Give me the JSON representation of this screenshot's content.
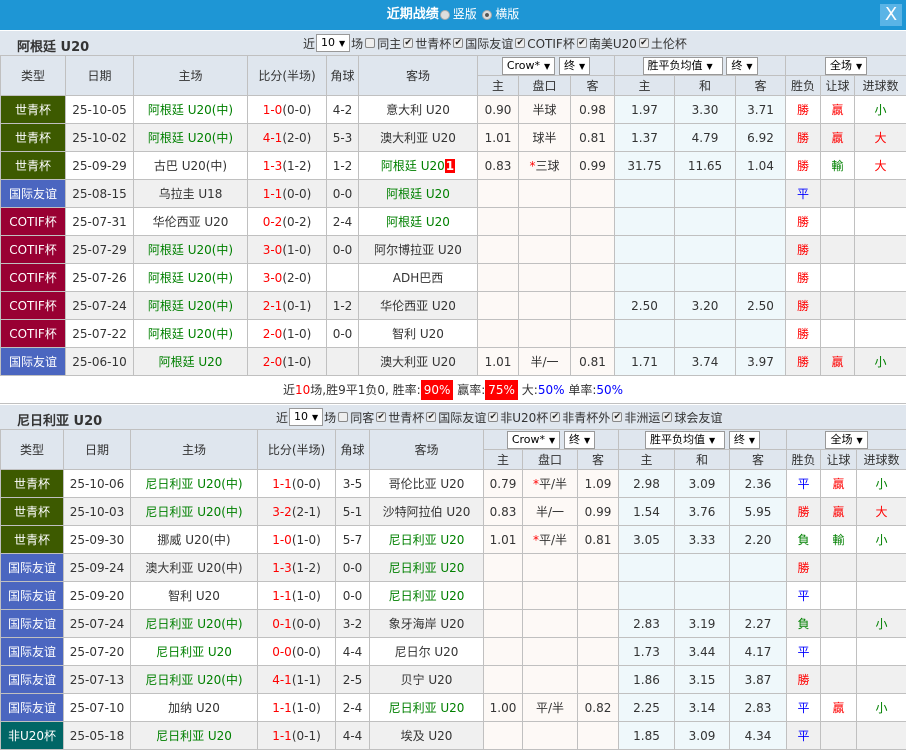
{
  "window": {
    "title": "近期战绩",
    "layout_options": [
      "竖版",
      "横版"
    ],
    "selected_layout": "横版",
    "close_label": "X"
  },
  "colors": {
    "title_bar": "#1e96d5",
    "header_bg": "#dfe6ee",
    "世青杯": "#3d5a00",
    "国际友谊": "#4b66c0",
    "COTIF杯": "#990033",
    "非U20杯": "#006666"
  },
  "headers": {
    "type": "类型",
    "date": "日期",
    "home": "主场",
    "score": "比分(半场)",
    "corner": "角球",
    "away": "客场",
    "company": "Crow*",
    "odds_state": "终",
    "avg": "胜平负均值",
    "avg_state": "终",
    "scope": "全场",
    "sub": [
      "主",
      "盘口",
      "客",
      "主",
      "和",
      "客",
      "胜负",
      "让球",
      "进球数"
    ]
  },
  "sections": [
    {
      "team": "阿根廷 U20",
      "recent_label": "近",
      "count": "10",
      "unit_label": "场",
      "same_label": "同主",
      "filters": [
        "世青杯",
        "国际友谊",
        "COTIF杯",
        "南美U20",
        "土伦杯"
      ],
      "rows": [
        {
          "type": "世青杯",
          "date": "25-10-05",
          "home": "阿根廷 U20(中)",
          "home_hl": true,
          "score": "1-0",
          "ht": "(0-0)",
          "corner": "4-2",
          "away": "意大利 U20",
          "away_hl": false,
          "o_h": "0.90",
          "star": "",
          "hc": "半球",
          "o_a": "0.98",
          "a_h": "1.97",
          "a_d": "3.30",
          "a_a": "3.71",
          "wl": "勝",
          "ah": "贏",
          "ou": "小"
        },
        {
          "type": "世青杯",
          "date": "25-10-02",
          "home": "阿根廷 U20(中)",
          "home_hl": true,
          "score": "4-1",
          "ht": "(2-0)",
          "corner": "5-3",
          "away": "澳大利亚 U20",
          "away_hl": false,
          "o_h": "1.01",
          "star": "",
          "hc": "球半",
          "o_a": "0.81",
          "a_h": "1.37",
          "a_d": "4.79",
          "a_a": "6.92",
          "wl": "勝",
          "ah": "贏",
          "ou": "大"
        },
        {
          "type": "世青杯",
          "date": "25-09-29",
          "home": "古巴 U20(中)",
          "home_hl": false,
          "score": "1-3",
          "ht": "(1-2)",
          "corner": "1-2",
          "away": "阿根廷 U20",
          "away_hl": true,
          "away_badge": "1",
          "o_h": "0.83",
          "star": "*",
          "hc": "三球",
          "o_a": "0.99",
          "a_h": "31.75",
          "a_d": "11.65",
          "a_a": "1.04",
          "wl": "勝",
          "ah": "輸",
          "ou": "大"
        },
        {
          "type": "国际友谊",
          "date": "25-08-15",
          "home": "乌拉圭 U18",
          "home_hl": false,
          "score": "1-1",
          "ht": "(0-0)",
          "corner": "0-0",
          "away": "阿根廷 U20",
          "away_hl": true,
          "o_h": "",
          "star": "",
          "hc": "",
          "o_a": "",
          "a_h": "",
          "a_d": "",
          "a_a": "",
          "wl": "平",
          "ah": "",
          "ou": ""
        },
        {
          "type": "COTIF杯",
          "date": "25-07-31",
          "home": "华伦西亚 U20",
          "home_hl": false,
          "score": "0-2",
          "ht": "(0-2)",
          "corner": "2-4",
          "away": "阿根廷 U20",
          "away_hl": true,
          "o_h": "",
          "star": "",
          "hc": "",
          "o_a": "",
          "a_h": "",
          "a_d": "",
          "a_a": "",
          "wl": "勝",
          "ah": "",
          "ou": ""
        },
        {
          "type": "COTIF杯",
          "date": "25-07-29",
          "home": "阿根廷 U20(中)",
          "home_hl": true,
          "score": "3-0",
          "ht": "(1-0)",
          "corner": "0-0",
          "away": "阿尔博拉亚 U20",
          "away_hl": false,
          "o_h": "",
          "star": "",
          "hc": "",
          "o_a": "",
          "a_h": "",
          "a_d": "",
          "a_a": "",
          "wl": "勝",
          "ah": "",
          "ou": ""
        },
        {
          "type": "COTIF杯",
          "date": "25-07-26",
          "home": "阿根廷 U20(中)",
          "home_hl": true,
          "score": "3-0",
          "ht": "(2-0)",
          "corner": "",
          "away": "ADH巴西",
          "away_hl": false,
          "o_h": "",
          "star": "",
          "hc": "",
          "o_a": "",
          "a_h": "",
          "a_d": "",
          "a_a": "",
          "wl": "勝",
          "ah": "",
          "ou": ""
        },
        {
          "type": "COTIF杯",
          "date": "25-07-24",
          "home": "阿根廷 U20(中)",
          "home_hl": true,
          "score": "2-1",
          "ht": "(0-1)",
          "corner": "1-2",
          "away": "华伦西亚 U20",
          "away_hl": false,
          "o_h": "",
          "star": "",
          "hc": "",
          "o_a": "",
          "a_h": "2.50",
          "a_d": "3.20",
          "a_a": "2.50",
          "wl": "勝",
          "ah": "",
          "ou": ""
        },
        {
          "type": "COTIF杯",
          "date": "25-07-22",
          "home": "阿根廷 U20(中)",
          "home_hl": true,
          "score": "2-0",
          "ht": "(1-0)",
          "corner": "0-0",
          "away": "智利 U20",
          "away_hl": false,
          "o_h": "",
          "star": "",
          "hc": "",
          "o_a": "",
          "a_h": "",
          "a_d": "",
          "a_a": "",
          "wl": "勝",
          "ah": "",
          "ou": ""
        },
        {
          "type": "国际友谊",
          "date": "25-06-10",
          "home": "阿根廷 U20",
          "home_hl": true,
          "score": "2-0",
          "ht": "(1-0)",
          "corner": "",
          "away": "澳大利亚 U20",
          "away_hl": false,
          "o_h": "1.01",
          "star": "",
          "hc": "半/一",
          "o_a": "0.81",
          "a_h": "1.71",
          "a_d": "3.74",
          "a_a": "3.97",
          "wl": "勝",
          "ah": "贏",
          "ou": "小"
        }
      ],
      "summary": {
        "p1": "近",
        "n": "10",
        "p2": "场,胜",
        "w": "9",
        "p3": "平",
        "d": "1",
        "p4": "负",
        "l": "0",
        "p5": ", 胜率:",
        "win_rate": "90%",
        "p6": "赢率:",
        "ah_rate": "75%",
        "p7": "大:",
        "big_rate": "50%",
        "p8": "单率:",
        "odd_rate": "50%"
      }
    },
    {
      "team": "尼日利亚 U20",
      "recent_label": "近",
      "count": "10",
      "unit_label": "场",
      "same_label": "同客",
      "filters": [
        "世青杯",
        "国际友谊",
        "非U20杯",
        "非青杯外",
        "非洲运",
        "球会友谊"
      ],
      "rows": [
        {
          "type": "世青杯",
          "date": "25-10-06",
          "home": "尼日利亚 U20(中)",
          "home_hl": true,
          "score": "1-1",
          "ht": "(0-0)",
          "corner": "3-5",
          "away": "哥伦比亚 U20",
          "away_hl": false,
          "o_h": "0.79",
          "star": "*",
          "hc": "平/半",
          "o_a": "1.09",
          "a_h": "2.98",
          "a_d": "3.09",
          "a_a": "2.36",
          "wl": "平",
          "ah": "贏",
          "ou": "小"
        },
        {
          "type": "世青杯",
          "date": "25-10-03",
          "home": "尼日利亚 U20(中)",
          "home_hl": true,
          "score": "3-2",
          "ht": "(2-1)",
          "corner": "5-1",
          "away": "沙特阿拉伯 U20",
          "away_hl": false,
          "o_h": "0.83",
          "star": "",
          "hc": "半/一",
          "o_a": "0.99",
          "a_h": "1.54",
          "a_d": "3.76",
          "a_a": "5.95",
          "wl": "勝",
          "ah": "贏",
          "ou": "大"
        },
        {
          "type": "世青杯",
          "date": "25-09-30",
          "home": "挪威 U20(中)",
          "home_hl": false,
          "score": "1-0",
          "ht": "(1-0)",
          "corner": "5-7",
          "away": "尼日利亚 U20",
          "away_hl": true,
          "o_h": "1.01",
          "star": "*",
          "hc": "平/半",
          "o_a": "0.81",
          "a_h": "3.05",
          "a_d": "3.33",
          "a_a": "2.20",
          "wl": "負",
          "ah": "輸",
          "ou": "小"
        },
        {
          "type": "国际友谊",
          "date": "25-09-24",
          "home": "澳大利亚 U20(中)",
          "home_hl": false,
          "score": "1-3",
          "ht": "(1-2)",
          "corner": "0-0",
          "away": "尼日利亚 U20",
          "away_hl": true,
          "o_h": "",
          "star": "",
          "hc": "",
          "o_a": "",
          "a_h": "",
          "a_d": "",
          "a_a": "",
          "wl": "勝",
          "ah": "",
          "ou": ""
        },
        {
          "type": "国际友谊",
          "date": "25-09-20",
          "home": "智利 U20",
          "home_hl": false,
          "score": "1-1",
          "ht": "(1-0)",
          "corner": "0-0",
          "away": "尼日利亚 U20",
          "away_hl": true,
          "o_h": "",
          "star": "",
          "hc": "",
          "o_a": "",
          "a_h": "",
          "a_d": "",
          "a_a": "",
          "wl": "平",
          "ah": "",
          "ou": ""
        },
        {
          "type": "国际友谊",
          "date": "25-07-24",
          "home": "尼日利亚 U20(中)",
          "home_hl": true,
          "score": "0-1",
          "ht": "(0-0)",
          "corner": "3-2",
          "away": "象牙海岸 U20",
          "away_hl": false,
          "o_h": "",
          "star": "",
          "hc": "",
          "o_a": "",
          "a_h": "2.83",
          "a_d": "3.19",
          "a_a": "2.27",
          "wl": "負",
          "ah": "",
          "ou": "小"
        },
        {
          "type": "国际友谊",
          "date": "25-07-20",
          "home": "尼日利亚 U20",
          "home_hl": true,
          "score": "0-0",
          "ht": "(0-0)",
          "corner": "4-4",
          "away": "尼日尔 U20",
          "away_hl": false,
          "o_h": "",
          "star": "",
          "hc": "",
          "o_a": "",
          "a_h": "1.73",
          "a_d": "3.44",
          "a_a": "4.17",
          "wl": "平",
          "ah": "",
          "ou": ""
        },
        {
          "type": "国际友谊",
          "date": "25-07-13",
          "home": "尼日利亚 U20(中)",
          "home_hl": true,
          "score": "4-1",
          "ht": "(1-1)",
          "corner": "2-5",
          "away": "贝宁 U20",
          "away_hl": false,
          "o_h": "",
          "star": "",
          "hc": "",
          "o_a": "",
          "a_h": "1.86",
          "a_d": "3.15",
          "a_a": "3.87",
          "wl": "勝",
          "ah": "",
          "ou": ""
        },
        {
          "type": "国际友谊",
          "date": "25-07-10",
          "home": "加纳 U20",
          "home_hl": false,
          "score": "1-1",
          "ht": "(1-0)",
          "corner": "2-4",
          "away": "尼日利亚 U20",
          "away_hl": true,
          "o_h": "1.00",
          "star": "",
          "hc": "平/半",
          "o_a": "0.82",
          "a_h": "2.25",
          "a_d": "3.14",
          "a_a": "2.83",
          "wl": "平",
          "ah": "贏",
          "ou": "小"
        },
        {
          "type": "非U20杯",
          "date": "25-05-18",
          "home": "尼日利亚 U20",
          "home_hl": true,
          "score": "1-1",
          "ht": "(0-1)",
          "corner": "4-4",
          "away": "埃及 U20",
          "away_hl": false,
          "o_h": "",
          "star": "",
          "hc": "",
          "o_a": "",
          "a_h": "1.85",
          "a_d": "3.09",
          "a_a": "4.34",
          "wl": "平",
          "ah": "",
          "ou": ""
        }
      ]
    }
  ]
}
